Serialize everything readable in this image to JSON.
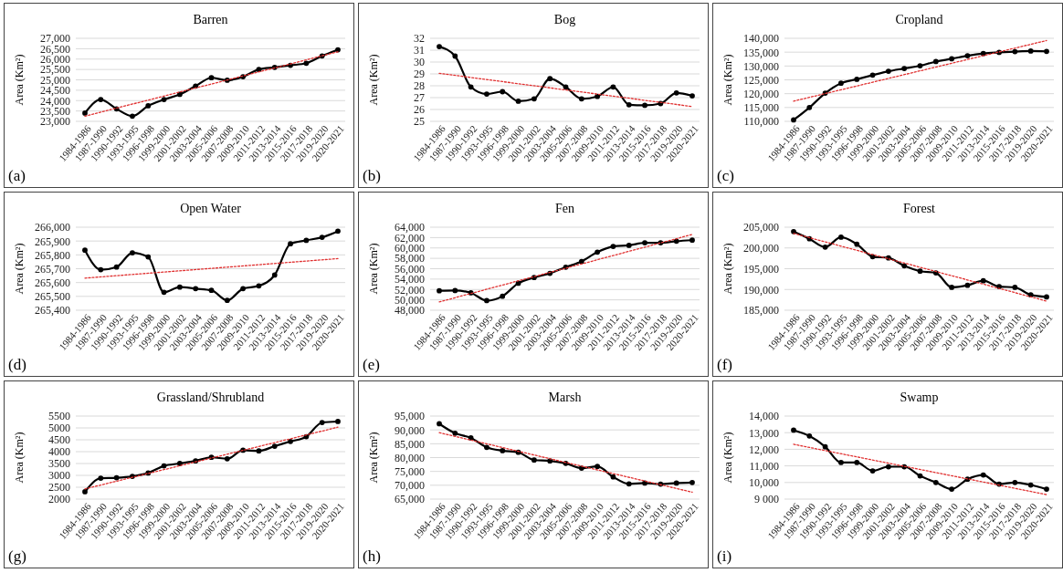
{
  "chart_data": [
    {
      "type": "line",
      "title": "Barren",
      "ylabel": "Area (Km²)",
      "annotations": [
        "(a)"
      ],
      "grid": "y",
      "marker": "circle",
      "categories": [
        "1984-1986",
        "1987-1990",
        "1990-1992",
        "1993-1995",
        "1996-1998",
        "1999-2000",
        "2001-2002",
        "2003-2004",
        "2005-2006",
        "2007-2008",
        "2009-2010",
        "2011-2012",
        "2013-2014",
        "2015-2016",
        "2017-2018",
        "2019-2020",
        "2020-2021"
      ],
      "ylim": [
        23000,
        27000
      ],
      "yticks": [
        {
          "value": 23000,
          "label": "23,000"
        },
        {
          "value": 23500,
          "label": "23,500"
        },
        {
          "value": 24000,
          "label": "24,000"
        },
        {
          "value": 24500,
          "label": "24,500"
        },
        {
          "value": 25000,
          "label": "25,000"
        },
        {
          "value": 25500,
          "label": "25,500"
        },
        {
          "value": 26000,
          "label": "26,000"
        },
        {
          "value": 26500,
          "label": "26,500"
        },
        {
          "value": 27000,
          "label": "27,000"
        }
      ],
      "series": [
        {
          "color": "#000000",
          "values": [
            23400,
            24050,
            23600,
            23250,
            23750,
            24050,
            24300,
            24700,
            25100,
            24980,
            25150,
            25500,
            25600,
            25700,
            25800,
            26150,
            26450
          ]
        },
        {
          "type": "line",
          "color": "#e03030",
          "line_style": "dotted",
          "marker": "none",
          "x": [
            "1984-1986",
            "2020-2021"
          ],
          "values": [
            23250,
            26350
          ]
        }
      ]
    },
    {
      "type": "line",
      "title": "Bog",
      "ylabel": "Area (Km²)",
      "annotations": [
        "(b)"
      ],
      "grid": "y",
      "marker": "circle",
      "categories": [
        "1984-1986",
        "1987-1990",
        "1990-1992",
        "1993-1995",
        "1996-1998",
        "1999-2000",
        "2001-2002",
        "2003-2004",
        "2005-2006",
        "2007-2008",
        "2009-2010",
        "2011-2012",
        "2013-2014",
        "2015-2016",
        "2017-2018",
        "2019-2020",
        "2020-2021"
      ],
      "ylim": [
        25,
        32
      ],
      "yticks": [
        25,
        26,
        27,
        28,
        29,
        30,
        31,
        32
      ],
      "series": [
        {
          "color": "#000000",
          "values": [
            31.3,
            30.5,
            27.9,
            27.3,
            27.5,
            26.7,
            26.9,
            28.6,
            27.9,
            26.9,
            27.1,
            27.9,
            26.4,
            26.35,
            26.5,
            27.4,
            27.15
          ]
        },
        {
          "type": "line",
          "color": "#e03030",
          "line_style": "dotted",
          "marker": "none",
          "x": [
            "1984-1986",
            "2020-2021"
          ],
          "values": [
            29.05,
            26.25
          ]
        }
      ]
    },
    {
      "type": "line",
      "title": "Cropland",
      "ylabel": "Area (Km²)",
      "annotations": [
        "(c)"
      ],
      "grid": "y",
      "marker": "circle",
      "categories": [
        "1984-1986",
        "1987-1990",
        "1990-1992",
        "1993-1995",
        "1996-1998",
        "1999-2000",
        "2001-2002",
        "2003-2004",
        "2005-2006",
        "2007-2008",
        "2009-2010",
        "2011-2012",
        "2013-2014",
        "2015-2016",
        "2017-2018",
        "2019-2020",
        "2020-2021"
      ],
      "ylim": [
        110000,
        140000
      ],
      "yticks": [
        {
          "value": 110000,
          "label": "110,000"
        },
        {
          "value": 115000,
          "label": "115,000"
        },
        {
          "value": 120000,
          "label": "120,000"
        },
        {
          "value": 125000,
          "label": "125,000"
        },
        {
          "value": 130000,
          "label": "130,000"
        },
        {
          "value": 135000,
          "label": "135,000"
        },
        {
          "value": 140000,
          "label": "140,000"
        }
      ],
      "series": [
        {
          "color": "#000000",
          "values": [
            110500,
            115000,
            120200,
            123800,
            125200,
            126700,
            128100,
            129100,
            130100,
            131600,
            132600,
            133700,
            134500,
            134900,
            135200,
            135400,
            135300
          ]
        },
        {
          "type": "line",
          "color": "#e03030",
          "line_style": "dotted",
          "marker": "none",
          "x": [
            "1984-1986",
            "2020-2021"
          ],
          "values": [
            117300,
            139200
          ]
        }
      ]
    },
    {
      "type": "line",
      "title": "Open Water",
      "ylabel": "Area (Km²)",
      "annotations": [
        "(d)"
      ],
      "grid": "y",
      "marker": "circle",
      "categories": [
        "1984-1986",
        "1987-1990",
        "1990-1992",
        "1993-1995",
        "1996-1998",
        "1999-2000",
        "2001-2002",
        "2003-2004",
        "2005-2006",
        "2007-2008",
        "2009-2010",
        "2011-2012",
        "2013-2014",
        "2015-2016",
        "2017-2018",
        "2019-2020",
        "2020-2021"
      ],
      "ylim": [
        265400,
        266000
      ],
      "yticks": [
        {
          "value": 265400,
          "label": "265,400"
        },
        {
          "value": 265500,
          "label": "265,500"
        },
        {
          "value": 265600,
          "label": "265,600"
        },
        {
          "value": 265700,
          "label": "265,700"
        },
        {
          "value": 265800,
          "label": "265,800"
        },
        {
          "value": 265900,
          "label": "265,900"
        },
        {
          "value": 266000,
          "label": "266,000"
        }
      ],
      "series": [
        {
          "color": "#000000",
          "values": [
            265834,
            265693,
            265712,
            265815,
            265785,
            265530,
            265567,
            265556,
            265544,
            265471,
            265556,
            265576,
            265654,
            265880,
            265905,
            265927,
            265971
          ]
        },
        {
          "type": "line",
          "color": "#e03030",
          "line_style": "dotted",
          "marker": "none",
          "x": [
            "1984-1986",
            "2020-2021"
          ],
          "values": [
            265632,
            265773
          ]
        }
      ]
    },
    {
      "type": "line",
      "title": "Fen",
      "ylabel": "Area (Km²)",
      "annotations": [
        "(e)"
      ],
      "grid": "y",
      "marker": "circle",
      "categories": [
        "1984-1986",
        "1987-1990",
        "1990-1992",
        "1993-1995",
        "1996-1998",
        "1999-2000",
        "2001-2002",
        "2003-2004",
        "2005-2006",
        "2007-2008",
        "2009-2010",
        "2011-2012",
        "2013-2014",
        "2015-2016",
        "2017-2018",
        "2019-2020",
        "2020-2021"
      ],
      "ylim": [
        48000,
        64000
      ],
      "yticks": [
        {
          "value": 48000,
          "label": "48,000"
        },
        {
          "value": 50000,
          "label": "50,000"
        },
        {
          "value": 52000,
          "label": "52,000"
        },
        {
          "value": 54000,
          "label": "54,000"
        },
        {
          "value": 56000,
          "label": "56,000"
        },
        {
          "value": 58000,
          "label": "58,000"
        },
        {
          "value": 60000,
          "label": "60,000"
        },
        {
          "value": 62000,
          "label": "62,000"
        },
        {
          "value": 64000,
          "label": "64,000"
        }
      ],
      "series": [
        {
          "color": "#000000",
          "values": [
            51750,
            51800,
            51350,
            49850,
            50700,
            53200,
            54300,
            55100,
            56300,
            57400,
            59200,
            60300,
            60500,
            61000,
            61000,
            61300,
            61500
          ]
        },
        {
          "type": "line",
          "color": "#e03030",
          "line_style": "dotted",
          "marker": "none",
          "x": [
            "1984-1986",
            "2020-2021"
          ],
          "values": [
            49600,
            62600
          ]
        }
      ]
    },
    {
      "type": "line",
      "title": "Forest",
      "ylabel": "Area (Km²)",
      "annotations": [
        "(f)"
      ],
      "grid": "y",
      "marker": "circle",
      "categories": [
        "1984-1986",
        "1987-1990",
        "1990-1992",
        "1993-1995",
        "1996-1998",
        "1999-2000",
        "2001-2002",
        "2003-2004",
        "2005-2006",
        "2007-2008",
        "2009-2010",
        "2011-2012",
        "2013-2014",
        "2015-2016",
        "2017-2018",
        "2019-2020",
        "2020-2021"
      ],
      "ylim": [
        185000,
        205000
      ],
      "yticks": [
        {
          "value": 185000,
          "label": "185,000"
        },
        {
          "value": 190000,
          "label": "190,000"
        },
        {
          "value": 195000,
          "label": "195,000"
        },
        {
          "value": 200000,
          "label": "200,000"
        },
        {
          "value": 205000,
          "label": "205,000"
        }
      ],
      "series": [
        {
          "color": "#000000",
          "values": [
            203950,
            202200,
            200200,
            202600,
            200900,
            197900,
            197600,
            195700,
            194400,
            194000,
            190500,
            191000,
            192100,
            190700,
            190500,
            188700,
            188200
          ]
        },
        {
          "type": "line",
          "color": "#e03030",
          "line_style": "dotted",
          "marker": "none",
          "x": [
            "1984-1986",
            "2020-2021"
          ],
          "values": [
            203500,
            187200
          ]
        }
      ]
    },
    {
      "type": "line",
      "title": "Grassland/Shrubland",
      "ylabel": "Area (Km²)",
      "annotations": [
        "(g)"
      ],
      "grid": "y",
      "marker": "circle",
      "categories": [
        "1984-1986",
        "1987-1990",
        "1990-1992",
        "1993-1995",
        "1996-1998",
        "1999-2000",
        "2001-2002",
        "2003-2004",
        "2005-2006",
        "2007-2008",
        "2009-2010",
        "2011-2012",
        "2013-2014",
        "2015-2016",
        "2017-2018",
        "2019-2020",
        "2020-2021"
      ],
      "ylim": [
        2000,
        5500
      ],
      "yticks": [
        2000,
        2500,
        3000,
        3500,
        4000,
        4500,
        5000,
        5500
      ],
      "series": [
        {
          "color": "#000000",
          "values": [
            2310,
            2880,
            2900,
            2960,
            3100,
            3400,
            3500,
            3610,
            3760,
            3700,
            4060,
            4030,
            4230,
            4430,
            4630,
            5230,
            5270
          ]
        },
        {
          "type": "line",
          "color": "#e03030",
          "line_style": "dotted",
          "marker": "none",
          "x": [
            "1984-1986",
            "2020-2021"
          ],
          "values": [
            2430,
            5030
          ]
        }
      ]
    },
    {
      "type": "line",
      "title": "Marsh",
      "ylabel": "Area (Km²)",
      "annotations": [
        "(h)"
      ],
      "grid": "y",
      "marker": "circle",
      "categories": [
        "1984-1986",
        "1987-1990",
        "1990-1992",
        "1993-1995",
        "1996-1998",
        "1999-2000",
        "2001-2002",
        "2003-2004",
        "2005-2006",
        "2007-2008",
        "2009-2010",
        "2011-2012",
        "2013-2014",
        "2015-2016",
        "2017-2018",
        "2019-2020",
        "2020-2021"
      ],
      "ylim": [
        65000,
        95000
      ],
      "yticks": [
        {
          "value": 65000,
          "label": "65,000"
        },
        {
          "value": 70000,
          "label": "70,000"
        },
        {
          "value": 75000,
          "label": "75,000"
        },
        {
          "value": 80000,
          "label": "80,000"
        },
        {
          "value": 85000,
          "label": "85,000"
        },
        {
          "value": 90000,
          "label": "90,000"
        },
        {
          "value": 95000,
          "label": "95,000"
        }
      ],
      "series": [
        {
          "color": "#000000",
          "values": [
            92200,
            88800,
            87100,
            83700,
            82500,
            81900,
            79100,
            78800,
            77900,
            76200,
            76800,
            73000,
            70500,
            70800,
            70400,
            70800,
            71000
          ]
        },
        {
          "type": "line",
          "color": "#e03030",
          "line_style": "dotted",
          "marker": "none",
          "x": [
            "1984-1986",
            "2020-2021"
          ],
          "values": [
            89000,
            67500
          ]
        }
      ]
    },
    {
      "type": "line",
      "title": "Swamp",
      "ylabel": "Area (Km²)",
      "annotations": [
        "(i)"
      ],
      "grid": "y",
      "marker": "circle",
      "categories": [
        "1984-1986",
        "1987-1990",
        "1990-1992",
        "1993-1995",
        "1996-1998",
        "1999-2000",
        "2001-2002",
        "2003-2004",
        "2005-2006",
        "2007-2008",
        "2009-2010",
        "2011-2012",
        "2013-2014",
        "2015-2016",
        "2017-2018",
        "2019-2020",
        "2020-2021"
      ],
      "ylim": [
        9000,
        14000
      ],
      "yticks": [
        {
          "value": 9000,
          "label": "9 000"
        },
        {
          "value": 10000,
          "label": "10,000"
        },
        {
          "value": 11000,
          "label": "11,000"
        },
        {
          "value": 12000,
          "label": "12,000"
        },
        {
          "value": 13000,
          "label": "13,000"
        },
        {
          "value": 14000,
          "label": "14,000"
        }
      ],
      "series": [
        {
          "color": "#000000",
          "values": [
            13150,
            12800,
            12150,
            11200,
            11200,
            10700,
            10950,
            10950,
            10400,
            10000,
            9600,
            10200,
            10450,
            9900,
            10000,
            9850,
            9600
          ]
        },
        {
          "type": "line",
          "color": "#e03030",
          "line_style": "dotted",
          "marker": "none",
          "x": [
            "1984-1986",
            "2020-2021"
          ],
          "values": [
            12300,
            9270
          ]
        }
      ]
    }
  ]
}
